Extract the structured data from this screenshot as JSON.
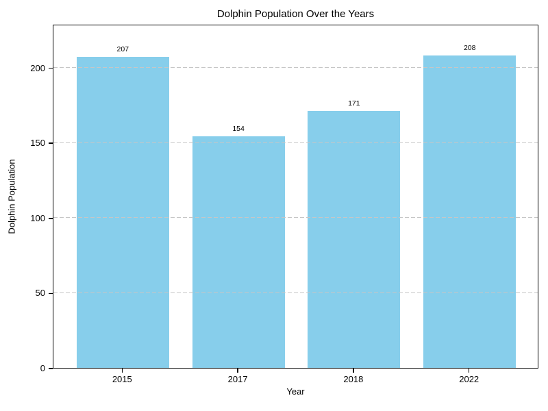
{
  "chart_data": {
    "type": "bar",
    "title": "Dolphin Population Over the Years",
    "xlabel": "Year",
    "ylabel": "Dolphin Population",
    "categories": [
      "2015",
      "2017",
      "2018",
      "2022"
    ],
    "values": [
      207,
      154,
      171,
      208
    ],
    "bar_value_labels": [
      "207",
      "154",
      "171",
      "208"
    ],
    "yticks": [
      0,
      50,
      100,
      150,
      200
    ],
    "ylim": [
      0,
      229
    ],
    "bar_color": "#87CEEB",
    "grid_color": "#c6c6c6",
    "grid_style": "dashed",
    "grid_on": true,
    "spine_color": "#000000",
    "background_color": "#ffffff",
    "legend": "none"
  }
}
